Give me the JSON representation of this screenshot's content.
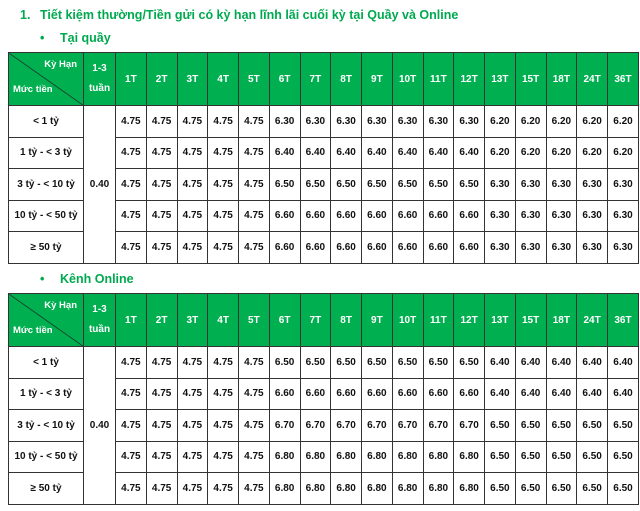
{
  "title": {
    "number": "1.",
    "text": "Tiết kiệm thường/Tiền gửi có kỳ hạn lĩnh lãi cuối kỳ tại Quầy và Online"
  },
  "colors": {
    "header_bg": "#00b050",
    "title": "#00a94f"
  },
  "header": {
    "corner_top": "Kỳ Hạn",
    "corner_bottom": "Mức tiền",
    "weeks": "1-3 tuần",
    "terms": [
      "1T",
      "2T",
      "3T",
      "4T",
      "5T",
      "6T",
      "7T",
      "8T",
      "9T",
      "10T",
      "11T",
      "12T",
      "13T",
      "15T",
      "18T",
      "24T",
      "36T"
    ]
  },
  "tables": [
    {
      "section": "Tại quầy",
      "weeks_rate": "0.40",
      "rows": [
        {
          "label": "< 1 tỷ",
          "values": [
            "4.75",
            "4.75",
            "4.75",
            "4.75",
            "4.75",
            "6.30",
            "6.30",
            "6.30",
            "6.30",
            "6.30",
            "6.30",
            "6.30",
            "6.20",
            "6.20",
            "6.20",
            "6.20",
            "6.20"
          ]
        },
        {
          "label": "1 tỷ - < 3 tỷ",
          "values": [
            "4.75",
            "4.75",
            "4.75",
            "4.75",
            "4.75",
            "6.40",
            "6.40",
            "6.40",
            "6.40",
            "6.40",
            "6.40",
            "6.40",
            "6.20",
            "6.20",
            "6.20",
            "6.20",
            "6.20"
          ]
        },
        {
          "label": "3 tỷ - < 10 tỷ",
          "values": [
            "4.75",
            "4.75",
            "4.75",
            "4.75",
            "4.75",
            "6.50",
            "6.50",
            "6.50",
            "6.50",
            "6.50",
            "6.50",
            "6.50",
            "6.30",
            "6.30",
            "6.30",
            "6.30",
            "6.30"
          ]
        },
        {
          "label": "10 tỷ - < 50 tỷ",
          "values": [
            "4.75",
            "4.75",
            "4.75",
            "4.75",
            "4.75",
            "6.60",
            "6.60",
            "6.60",
            "6.60",
            "6.60",
            "6.60",
            "6.60",
            "6.30",
            "6.30",
            "6.30",
            "6.30",
            "6.30"
          ]
        },
        {
          "label": "≥ 50 tỷ",
          "values": [
            "4.75",
            "4.75",
            "4.75",
            "4.75",
            "4.75",
            "6.60",
            "6.60",
            "6.60",
            "6.60",
            "6.60",
            "6.60",
            "6.60",
            "6.30",
            "6.30",
            "6.30",
            "6.30",
            "6.30"
          ]
        }
      ]
    },
    {
      "section": "Kênh Online",
      "weeks_rate": "0.40",
      "rows": [
        {
          "label": "< 1 tỷ",
          "values": [
            "4.75",
            "4.75",
            "4.75",
            "4.75",
            "4.75",
            "6.50",
            "6.50",
            "6.50",
            "6.50",
            "6.50",
            "6.50",
            "6.50",
            "6.40",
            "6.40",
            "6.40",
            "6.40",
            "6.40"
          ]
        },
        {
          "label": "1 tỷ - < 3 tỷ",
          "values": [
            "4.75",
            "4.75",
            "4.75",
            "4.75",
            "4.75",
            "6.60",
            "6.60",
            "6.60",
            "6.60",
            "6.60",
            "6.60",
            "6.60",
            "6.40",
            "6.40",
            "6.40",
            "6.40",
            "6.40"
          ]
        },
        {
          "label": "3 tỷ - < 10 tỷ",
          "values": [
            "4.75",
            "4.75",
            "4.75",
            "4.75",
            "4.75",
            "6.70",
            "6.70",
            "6.70",
            "6.70",
            "6.70",
            "6.70",
            "6.70",
            "6.50",
            "6.50",
            "6.50",
            "6.50",
            "6.50"
          ]
        },
        {
          "label": "10 tỷ - < 50 tỷ",
          "values": [
            "4.75",
            "4.75",
            "4.75",
            "4.75",
            "4.75",
            "6.80",
            "6.80",
            "6.80",
            "6.80",
            "6.80",
            "6.80",
            "6.80",
            "6.50",
            "6.50",
            "6.50",
            "6.50",
            "6.50"
          ]
        },
        {
          "label": "≥ 50 tỷ",
          "values": [
            "4.75",
            "4.75",
            "4.75",
            "4.75",
            "4.75",
            "6.80",
            "6.80",
            "6.80",
            "6.80",
            "6.80",
            "6.80",
            "6.80",
            "6.50",
            "6.50",
            "6.50",
            "6.50",
            "6.50"
          ]
        }
      ]
    }
  ]
}
